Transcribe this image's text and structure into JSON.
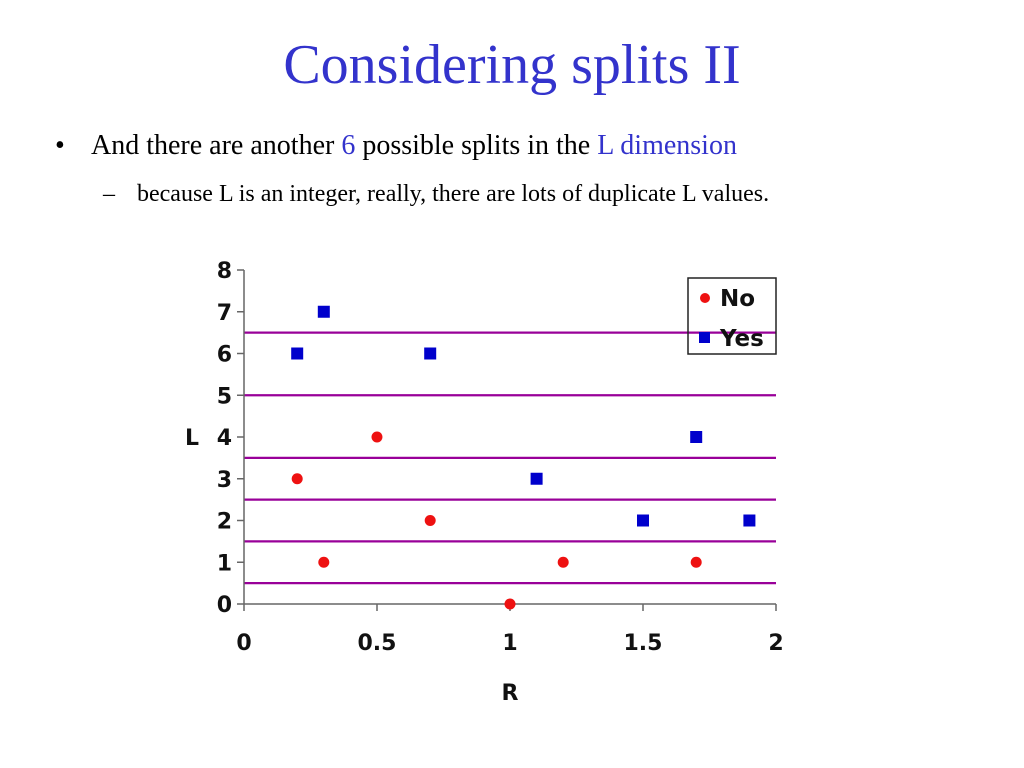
{
  "slide": {
    "title": "Considering splits II",
    "bullet": {
      "marker": "•",
      "text_before": "And there are another ",
      "count": "6",
      "text_middle": " possible splits in the ",
      "dimension": "L dimension"
    },
    "sub_bullet": {
      "marker": "–",
      "text": "because L is an integer, really, there are lots of duplicate L values."
    }
  },
  "colors": {
    "title": "#3333cc",
    "highlight": "#3333cc",
    "no_series": "#ee1111",
    "yes_series": "#0000cc",
    "split_line": "#990099"
  },
  "chart_data": {
    "type": "scatter",
    "xlabel": "R",
    "ylabel": "L",
    "xlim": [
      0,
      2
    ],
    "ylim": [
      0,
      8
    ],
    "x_ticks": [
      "0",
      "0.5",
      "1",
      "1.5",
      "2"
    ],
    "y_ticks": [
      "0",
      "1",
      "2",
      "3",
      "4",
      "5",
      "6",
      "7",
      "8"
    ],
    "legend_position": "top-right",
    "series": [
      {
        "name": "No",
        "marker": "circle",
        "points": [
          [
            0.2,
            3
          ],
          [
            0.3,
            1
          ],
          [
            0.5,
            4
          ],
          [
            0.7,
            2
          ],
          [
            1.0,
            0
          ],
          [
            1.2,
            1
          ],
          [
            1.7,
            1
          ]
        ]
      },
      {
        "name": "Yes",
        "marker": "square",
        "points": [
          [
            0.2,
            6
          ],
          [
            0.3,
            7
          ],
          [
            0.7,
            6
          ],
          [
            1.1,
            3
          ],
          [
            1.5,
            2
          ],
          [
            1.7,
            4
          ],
          [
            1.9,
            2
          ]
        ]
      }
    ],
    "split_lines_L": [
      0.5,
      1.5,
      2.5,
      3.5,
      5.0,
      6.5
    ]
  }
}
